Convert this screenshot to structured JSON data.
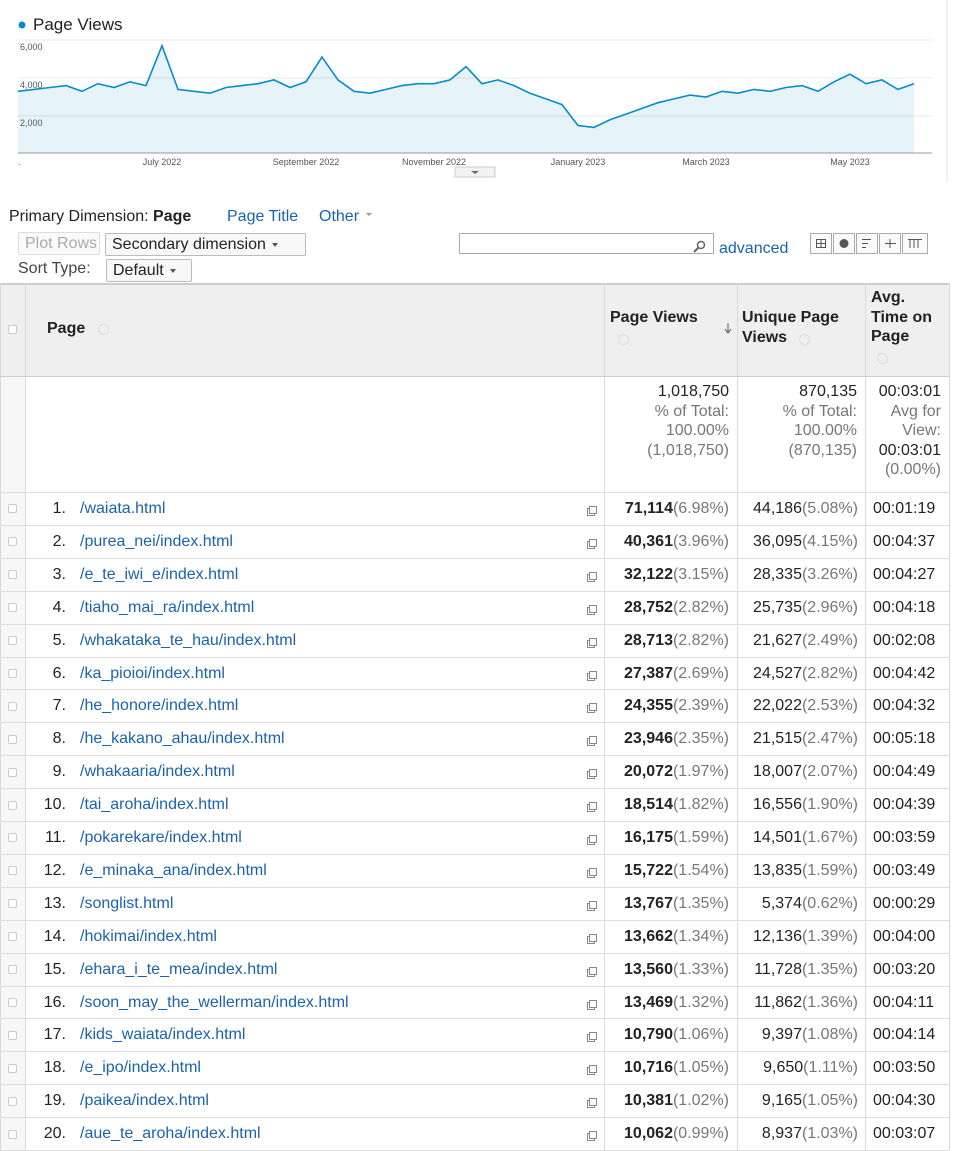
{
  "chart_data": {
    "type": "line",
    "categories": [
      ".",
      null,
      null,
      null,
      null,
      null,
      null,
      null,
      null,
      "July 2022",
      null,
      null,
      null,
      null,
      null,
      null,
      null,
      null,
      "September 2022",
      null,
      null,
      null,
      null,
      null,
      null,
      null,
      "November 2022",
      null,
      null,
      null,
      null,
      null,
      null,
      null,
      null,
      "January 2023",
      null,
      null,
      null,
      null,
      null,
      null,
      null,
      "March 2023",
      null,
      null,
      null,
      null,
      null,
      null,
      null,
      null,
      "May 2023",
      null,
      null,
      null,
      null
    ],
    "series": [
      {
        "name": "Page Views",
        "color": "#058dc7",
        "values": [
          3300,
          3400,
          3500,
          3600,
          3300,
          3700,
          3500,
          3800,
          3600,
          5700,
          3400,
          3300,
          3200,
          3500,
          3600,
          3700,
          3900,
          3500,
          3800,
          5100,
          3900,
          3300,
          3200,
          3400,
          3600,
          3700,
          3700,
          3900,
          4600,
          3700,
          3900,
          3600,
          3200,
          2900,
          2600,
          1500,
          1400,
          1800,
          2100,
          2400,
          2700,
          2900,
          3100,
          3000,
          3300,
          3200,
          3400,
          3300,
          3500,
          3600,
          3300,
          3800,
          4200,
          3700,
          3900,
          3400,
          3700
        ]
      }
    ],
    "ylim": [
      0,
      6000
    ],
    "yticks": [
      {
        "value": 2000,
        "label": "2,000"
      },
      {
        "value": 4000,
        "label": "4,000"
      },
      {
        "value": 6000,
        "label": "6,000"
      }
    ],
    "grid": true
  },
  "controls": {
    "primary_label": "Primary Dimension:",
    "primary_active": "Page",
    "primary_options": [
      "Page Title",
      "Other"
    ],
    "plot_rows": "Plot Rows",
    "secondary": "Secondary dimension",
    "advanced": "advanced",
    "sort_label": "Sort Type:",
    "sort_value": "Default"
  },
  "table": {
    "headers": [
      "Page",
      "Page Views",
      "Unique Page Views",
      "Avg. Time on Page"
    ],
    "totals": [
      [
        "1,018,750",
        "% of Total:",
        "100.00%",
        "(1,018,750)"
      ],
      [
        "870,135",
        "% of Total:",
        "100.00%",
        "(870,135)"
      ],
      [
        "00:03:01",
        "Avg for View:",
        "00:03:01",
        "(0.00%)"
      ]
    ],
    "rows": [
      [
        "1.",
        "/waiata.html",
        "71,114",
        "(6.98%)",
        "44,186",
        "(5.08%)",
        "00:01:19"
      ],
      [
        "2.",
        "/purea_nei/index.html",
        "40,361",
        "(3.96%)",
        "36,095",
        "(4.15%)",
        "00:04:37"
      ],
      [
        "3.",
        "/e_te_iwi_e/index.html",
        "32,122",
        "(3.15%)",
        "28,335",
        "(3.26%)",
        "00:04:27"
      ],
      [
        "4.",
        "/tiaho_mai_ra/index.html",
        "28,752",
        "(2.82%)",
        "25,735",
        "(2.96%)",
        "00:04:18"
      ],
      [
        "5.",
        "/whakataka_te_hau/index.html",
        "28,713",
        "(2.82%)",
        "21,627",
        "(2.49%)",
        "00:02:08"
      ],
      [
        "6.",
        "/ka_pioioi/index.html",
        "27,387",
        "(2.69%)",
        "24,527",
        "(2.82%)",
        "00:04:42"
      ],
      [
        "7.",
        "/he_honore/index.html",
        "24,355",
        "(2.39%)",
        "22,022",
        "(2.53%)",
        "00:04:32"
      ],
      [
        "8.",
        "/he_kakano_ahau/index.html",
        "23,946",
        "(2.35%)",
        "21,515",
        "(2.47%)",
        "00:05:18"
      ],
      [
        "9.",
        "/whakaaria/index.html",
        "20,072",
        "(1.97%)",
        "18,007",
        "(2.07%)",
        "00:04:49"
      ],
      [
        "10.",
        "/tai_aroha/index.html",
        "18,514",
        "(1.82%)",
        "16,556",
        "(1.90%)",
        "00:04:39"
      ],
      [
        "11.",
        "/pokarekare/index.html",
        "16,175",
        "(1.59%)",
        "14,501",
        "(1.67%)",
        "00:03:59"
      ],
      [
        "12.",
        "/e_minaka_ana/index.html",
        "15,722",
        "(1.54%)",
        "13,835",
        "(1.59%)",
        "00:03:49"
      ],
      [
        "13.",
        "/songlist.html",
        "13,767",
        "(1.35%)",
        "5,374",
        "(0.62%)",
        "00:00:29"
      ],
      [
        "14.",
        "/hokimai/index.html",
        "13,662",
        "(1.34%)",
        "12,136",
        "(1.39%)",
        "00:04:00"
      ],
      [
        "15.",
        "/ehara_i_te_mea/index.html",
        "13,560",
        "(1.33%)",
        "11,728",
        "(1.35%)",
        "00:03:20"
      ],
      [
        "16.",
        "/soon_may_the_wellerman/index.html",
        "13,469",
        "(1.32%)",
        "11,862",
        "(1.36%)",
        "00:04:11"
      ],
      [
        "17.",
        "/kids_waiata/index.html",
        "10,790",
        "(1.06%)",
        "9,397",
        "(1.08%)",
        "00:04:14"
      ],
      [
        "18.",
        "/e_ipo/index.html",
        "10,716",
        "(1.05%)",
        "9,650",
        "(1.11%)",
        "00:03:50"
      ],
      [
        "19.",
        "/paikea/index.html",
        "10,381",
        "(1.02%)",
        "9,165",
        "(1.05%)",
        "00:04:30"
      ],
      [
        "20.",
        "/aue_te_aroha/index.html",
        "10,062",
        "(0.99%)",
        "8,937",
        "(1.03%)",
        "00:03:07"
      ]
    ]
  }
}
